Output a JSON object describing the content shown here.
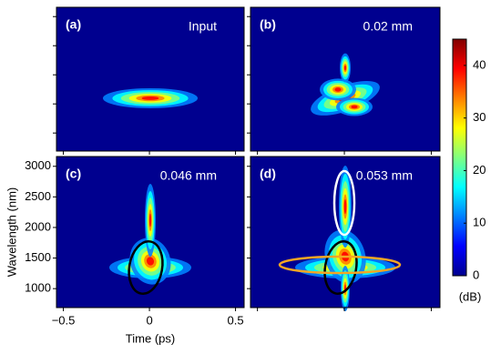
{
  "chart_data": [
    {
      "type": "heatmap",
      "panel_label": "(a)",
      "annotation": "Input",
      "xlim": [
        -0.54,
        0.55
      ],
      "ylim": [
        690,
        3160
      ],
      "xticks": [
        {
          "value": -0.5,
          "label": "−0.5"
        },
        0,
        0.5
      ],
      "yticks": [
        1000,
        1500,
        2000,
        2500,
        3000
      ]
    },
    {
      "type": "heatmap",
      "panel_label": "(b)",
      "annotation": "0.02 mm",
      "xlim": [
        -0.54,
        0.55
      ],
      "ylim": [
        690,
        3160
      ],
      "xticks": [
        {
          "value": -0.5,
          "label": "−0.5"
        },
        0,
        0.5
      ],
      "yticks": [
        1000,
        1500,
        2000,
        2500,
        3000
      ]
    },
    {
      "type": "heatmap",
      "panel_label": "(c)",
      "annotation": "0.046 mm",
      "xlabel": "Time (ps)",
      "ylabel": "Wavelength (nm)",
      "xlim": [
        -0.54,
        0.55
      ],
      "ylim": [
        690,
        3160
      ],
      "xticks": [
        {
          "value": -0.5,
          "label": "−0.5"
        },
        0,
        0.5
      ],
      "yticks": [
        1000,
        1500,
        2000,
        2500,
        3000
      ]
    },
    {
      "type": "heatmap",
      "panel_label": "(d)",
      "annotation": "0.053 mm",
      "xlim": [
        -0.54,
        0.55
      ],
      "ylim": [
        690,
        3160
      ],
      "xticks": [
        {
          "value": -0.5,
          "label": "−0.5"
        },
        0,
        0.5
      ],
      "yticks": [
        1000,
        1500,
        2000,
        2500,
        3000
      ]
    },
    {
      "type": "colorbar",
      "label": "(dB)",
      "ylim": [
        0,
        45
      ],
      "yticks": [
        0,
        10,
        20,
        30,
        40
      ],
      "colormap": [
        "#00008f",
        "#0000ff",
        "#0080ff",
        "#00ffff",
        "#80ff80",
        "#ffff00",
        "#ff8000",
        "#ff0000",
        "#800000"
      ]
    }
  ]
}
